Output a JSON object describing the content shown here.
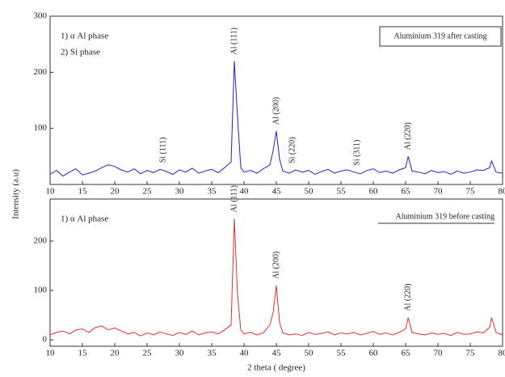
{
  "chart_data": [
    {
      "type": "line",
      "y_label": "Intensity (a.u)",
      "phase_labels": [
        {
          "text": "1) α Al phase",
          "color": "#8a2be2"
        },
        {
          "text": "2) Si phase",
          "color": "#e0409a"
        }
      ],
      "xlim": [
        10,
        80
      ],
      "xticks": [
        10,
        15,
        20,
        25,
        30,
        35,
        40,
        45,
        50,
        55,
        60,
        65,
        70,
        75,
        80
      ],
      "ylim": [
        0,
        300
      ],
      "yticks": [
        100,
        200,
        300
      ],
      "x": [
        10,
        11,
        12,
        13,
        14,
        15,
        16,
        17,
        18,
        19,
        20,
        21,
        22,
        23,
        24,
        25,
        26,
        27,
        28,
        29,
        30,
        31,
        32,
        33,
        34,
        35,
        36,
        37,
        38,
        38.5,
        39,
        39.5,
        40,
        41,
        42,
        43,
        44,
        44.5,
        45,
        45.5,
        46,
        47,
        48,
        49,
        50,
        51,
        52,
        53,
        54,
        55,
        56,
        57,
        58,
        59,
        60,
        61,
        62,
        63,
        64,
        65,
        65.4,
        66,
        67,
        68,
        69,
        70,
        71,
        72,
        73,
        74,
        75,
        76,
        77,
        78,
        78.3,
        79,
        80
      ],
      "series": [
        {
          "name": "Aluminium 319 after casting",
          "color": "#2222cc",
          "values": [
            18,
            25,
            15,
            22,
            28,
            17,
            20,
            24,
            30,
            35,
            32,
            26,
            22,
            28,
            19,
            25,
            21,
            27,
            23,
            18,
            26,
            22,
            29,
            20,
            24,
            27,
            21,
            30,
            40,
            220,
            120,
            30,
            22,
            25,
            20,
            28,
            35,
            60,
            95,
            45,
            24,
            20,
            26,
            22,
            25,
            18,
            23,
            27,
            20,
            24,
            26,
            22,
            19,
            25,
            28,
            21,
            24,
            20,
            26,
            30,
            50,
            24,
            22,
            19,
            25,
            21,
            23,
            18,
            24,
            20,
            22,
            26,
            25,
            30,
            42,
            22,
            20
          ]
        }
      ],
      "annotations": [
        {
          "text": "Si (111)",
          "x": 27.5,
          "color": "#e0409a"
        },
        {
          "text": "Al (111)",
          "x": 38.5,
          "color": "#8a2be2"
        },
        {
          "text": "Al (200)",
          "x": 45,
          "color": "#8a2be2"
        },
        {
          "text": "Si (220)",
          "x": 47.5,
          "color": "#e0409a"
        },
        {
          "text": "Si (311)",
          "x": 57.5,
          "color": "#e0409a"
        },
        {
          "text": "Al (220)",
          "x": 65.4,
          "color": "#8a2be2"
        }
      ]
    },
    {
      "type": "line",
      "x_label": "2 theta ( degree)",
      "phase_labels": [
        {
          "text": "1) α Al phase",
          "color": "#8a2be2"
        }
      ],
      "xlim": [
        10,
        80
      ],
      "xticks": [
        10,
        15,
        20,
        25,
        30,
        35,
        40,
        45,
        50,
        55,
        60,
        65,
        70,
        75,
        80
      ],
      "ylim": [
        -13,
        285
      ],
      "yticks": [
        0,
        100,
        200
      ],
      "x": [
        10,
        11,
        12,
        13,
        14,
        15,
        16,
        17,
        18,
        19,
        20,
        21,
        22,
        23,
        24,
        25,
        26,
        27,
        28,
        29,
        30,
        31,
        32,
        33,
        34,
        35,
        36,
        37,
        38,
        38.5,
        39,
        39.5,
        40,
        41,
        42,
        43,
        44,
        44.5,
        45,
        45.5,
        46,
        47,
        48,
        49,
        50,
        51,
        52,
        53,
        54,
        55,
        56,
        57,
        58,
        59,
        60,
        61,
        62,
        63,
        64,
        65,
        65.4,
        66,
        67,
        68,
        69,
        70,
        71,
        72,
        73,
        74,
        75,
        76,
        77,
        78,
        78.3,
        79,
        80
      ],
      "series": [
        {
          "name": "Aluminium 319 before casting",
          "color": "#e03030",
          "values": [
            10,
            15,
            18,
            12,
            20,
            22,
            15,
            25,
            28,
            20,
            24,
            18,
            12,
            15,
            8,
            14,
            10,
            16,
            12,
            9,
            15,
            11,
            18,
            10,
            14,
            16,
            12,
            20,
            30,
            245,
            90,
            20,
            12,
            15,
            10,
            14,
            30,
            55,
            110,
            35,
            14,
            10,
            12,
            9,
            15,
            11,
            13,
            16,
            10,
            14,
            12,
            15,
            10,
            13,
            17,
            11,
            14,
            10,
            15,
            22,
            45,
            15,
            12,
            10,
            14,
            11,
            13,
            9,
            15,
            11,
            12,
            16,
            14,
            25,
            45,
            15,
            10
          ]
        }
      ],
      "annotations": [
        {
          "text": "Al (111)",
          "x": 38.5,
          "color": "#8a2be2"
        },
        {
          "text": "Al (200)",
          "x": 45,
          "color": "#8a2be2"
        },
        {
          "text": "Al (220)",
          "x": 65.4,
          "color": "#8a2be2"
        }
      ]
    }
  ]
}
